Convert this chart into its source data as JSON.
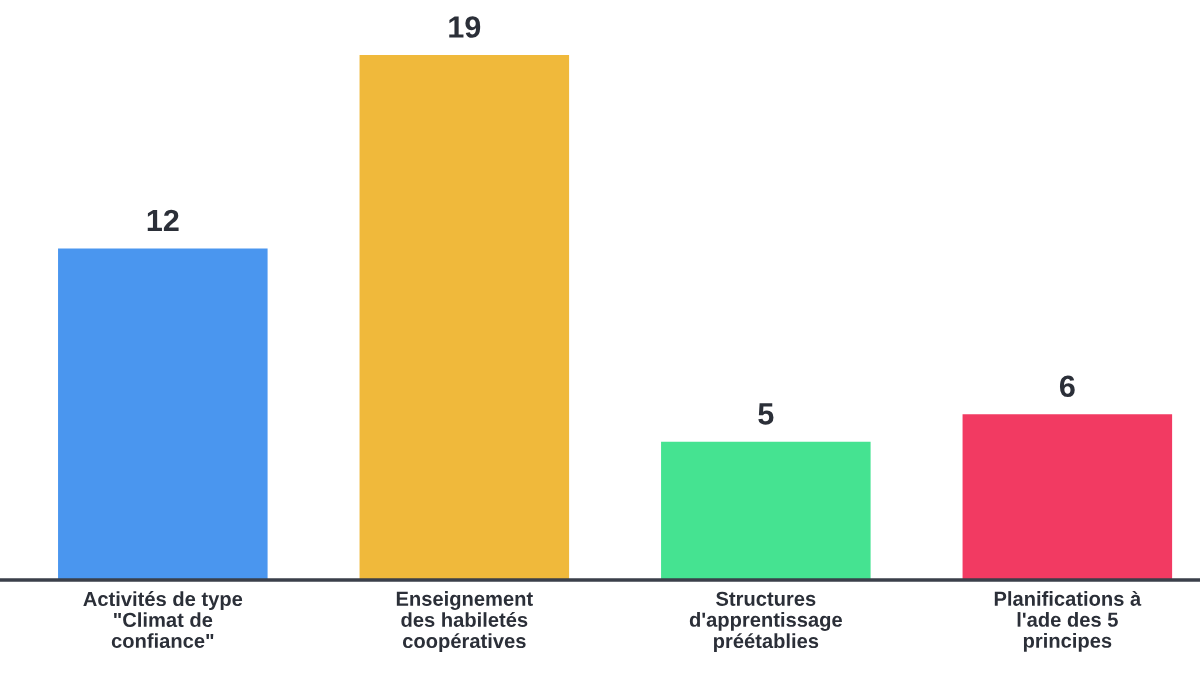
{
  "chart_data": {
    "type": "bar",
    "categories": [
      "Activités de type\n\"Climat de\nconfiance\"",
      "Enseignement\ndes habiletés\ncoopératives",
      "Structures\nd'apprentissage\npréétablies",
      "Planifications à\nl'ade des 5\nprincipes"
    ],
    "values": [
      12,
      19,
      5,
      6
    ],
    "colors": [
      "#4a96ef",
      "#f0b93b",
      "#45e391",
      "#f23a62"
    ],
    "data_labels": true
  }
}
